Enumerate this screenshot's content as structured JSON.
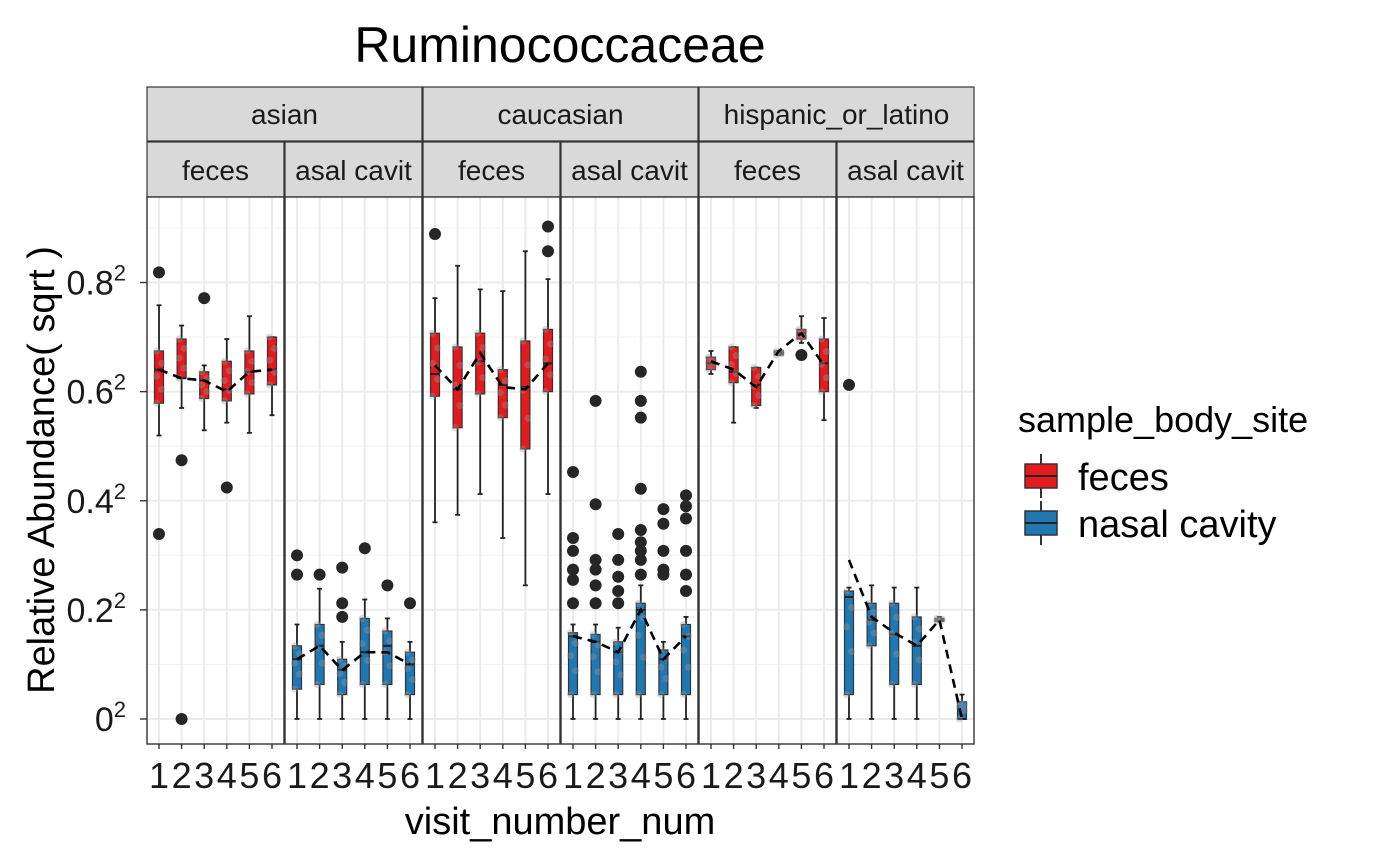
{
  "chart_data": {
    "type": "box",
    "title": "Ruminococcaceae",
    "xlabel": "visit_number_num",
    "ylabel": "Relative Abundance( sqrt )",
    "y_scale": "sqrt",
    "y_ticks": [
      {
        "value": 0,
        "base": "0",
        "exp": "2"
      },
      {
        "value": 0.2,
        "base": "0.2",
        "exp": "2"
      },
      {
        "value": 0.4,
        "base": "0.4",
        "exp": "2"
      },
      {
        "value": 0.6,
        "base": "0.6",
        "exp": "2"
      },
      {
        "value": 0.8,
        "base": "0.8",
        "exp": "2"
      }
    ],
    "x_tick_labels": [
      "1",
      "2",
      "3",
      "4",
      "5",
      "6"
    ],
    "legend": {
      "title": "sample_body_site",
      "position": "right",
      "items": [
        {
          "label": "feces",
          "color": "#E41A1C"
        },
        {
          "label": "nasal cavity",
          "color": "#1F78B4"
        }
      ]
    },
    "facet_rows": [
      {
        "label": "asian",
        "span": 2
      },
      {
        "label": "caucasian",
        "span": 2
      },
      {
        "label": "hispanic_or_latino",
        "span": 2
      }
    ],
    "panels": [
      {
        "ethnicity": "asian",
        "strip": "feces",
        "site": "feces",
        "boxes": [
          {
            "visit": 1,
            "min": 0.27,
            "q1": 0.335,
            "median": 0.41,
            "q3": 0.455,
            "max": 0.575,
            "outliers": [
              0.67,
              0.115
            ]
          },
          {
            "visit": 2,
            "min": 0.325,
            "q1": 0.39,
            "median": 0.39,
            "q3": 0.485,
            "max": 0.52,
            "outliers": [
              0.225,
              0.0
            ]
          },
          {
            "visit": 3,
            "min": 0.28,
            "q1": 0.345,
            "median": 0.385,
            "q3": 0.405,
            "max": 0.42,
            "outliers": [
              0.595
            ]
          },
          {
            "visit": 4,
            "min": 0.295,
            "q1": 0.34,
            "median": 0.365,
            "q3": 0.43,
            "max": 0.485,
            "outliers": [
              0.18
            ]
          },
          {
            "visit": 5,
            "min": 0.275,
            "q1": 0.355,
            "median": 0.405,
            "q3": 0.455,
            "max": 0.545,
            "outliers": []
          },
          {
            "visit": 6,
            "min": 0.31,
            "q1": 0.375,
            "median": 0.41,
            "q3": 0.49,
            "max": 0.49,
            "outliers": []
          }
        ]
      },
      {
        "ethnicity": "asian",
        "strip": "asal cavit",
        "site": "nasal cavity",
        "boxes": [
          {
            "visit": 1,
            "min": 0.0,
            "q1": 0.003,
            "median": 0.012,
            "q3": 0.018,
            "max": 0.03,
            "outliers": [
              0.09,
              0.07
            ]
          },
          {
            "visit": 2,
            "min": 0.0,
            "q1": 0.004,
            "median": 0.018,
            "q3": 0.03,
            "max": 0.057,
            "outliers": [
              0.07
            ]
          },
          {
            "visit": 3,
            "min": 0.0,
            "q1": 0.002,
            "median": 0.008,
            "q3": 0.012,
            "max": 0.02,
            "outliers": [
              0.077,
              0.045,
              0.035
            ]
          },
          {
            "visit": 4,
            "min": 0.0,
            "q1": 0.004,
            "median": 0.015,
            "q3": 0.034,
            "max": 0.048,
            "outliers": [
              0.098
            ]
          },
          {
            "visit": 5,
            "min": 0.0,
            "q1": 0.004,
            "median": 0.018,
            "q3": 0.026,
            "max": 0.034,
            "outliers": [
              0.06
            ]
          },
          {
            "visit": 6,
            "min": 0.0,
            "q1": 0.002,
            "median": 0.01,
            "q3": 0.015,
            "max": 0.02,
            "outliers": [
              0.045
            ]
          }
        ]
      },
      {
        "ethnicity": "caucasian",
        "strip": "feces",
        "site": "feces",
        "boxes": [
          {
            "visit": 1,
            "min": 0.13,
            "q1": 0.35,
            "median": 0.4,
            "q3": 0.5,
            "max": 0.595,
            "outliers": [
              0.79
            ]
          },
          {
            "visit": 2,
            "min": 0.14,
            "q1": 0.285,
            "median": 0.365,
            "q3": 0.465,
            "max": 0.69,
            "outliers": []
          },
          {
            "visit": 3,
            "min": 0.17,
            "q1": 0.355,
            "median": 0.43,
            "q3": 0.5,
            "max": 0.62,
            "outliers": []
          },
          {
            "visit": 4,
            "min": 0.11,
            "q1": 0.305,
            "median": 0.375,
            "q3": 0.41,
            "max": 0.615,
            "outliers": []
          },
          {
            "visit": 5,
            "min": 0.06,
            "q1": 0.245,
            "median": 0.37,
            "q3": 0.48,
            "max": 0.735,
            "outliers": []
          },
          {
            "visit": 6,
            "min": 0.17,
            "q1": 0.36,
            "median": 0.425,
            "q3": 0.51,
            "max": 0.65,
            "outliers": [
              0.815,
              0.735
            ]
          }
        ]
      },
      {
        "ethnicity": "caucasian",
        "strip": "asal cavit",
        "site": "nasal cavity",
        "boxes": [
          {
            "visit": 1,
            "min": 0.0,
            "q1": 0.002,
            "median": 0.023,
            "q3": 0.025,
            "max": 0.03,
            "outliers": [
              0.205,
              0.11,
              0.095,
              0.075,
              0.065,
              0.045
            ]
          },
          {
            "visit": 2,
            "min": 0.0,
            "q1": 0.002,
            "median": 0.02,
            "q3": 0.024,
            "max": 0.03,
            "outliers": [
              0.34,
              0.155,
              0.085,
              0.075,
              0.06,
              0.045
            ]
          },
          {
            "visit": 3,
            "min": 0.0,
            "q1": 0.002,
            "median": 0.015,
            "q3": 0.02,
            "max": 0.028,
            "outliers": [
              0.115,
              0.085,
              0.068,
              0.055,
              0.045
            ]
          },
          {
            "visit": 4,
            "min": 0.0,
            "q1": 0.002,
            "median": 0.04,
            "q3": 0.045,
            "max": 0.06,
            "outliers": [
              0.405,
              0.34,
              0.305,
              0.178,
              0.12,
              0.105,
              0.095,
              0.085,
              0.07
            ]
          },
          {
            "visit": 5,
            "min": 0.0,
            "q1": 0.002,
            "median": 0.012,
            "q3": 0.016,
            "max": 0.02,
            "outliers": [
              0.148,
              0.128,
              0.095,
              0.075,
              0.07
            ]
          },
          {
            "visit": 6,
            "min": 0.0,
            "q1": 0.002,
            "median": 0.023,
            "q3": 0.03,
            "max": 0.035,
            "outliers": [
              0.168,
              0.152,
              0.135,
              0.095,
              0.07,
              0.055
            ]
          }
        ]
      },
      {
        "ethnicity": "hispanic_or_latino",
        "strip": "feces",
        "site": "feces",
        "boxes": [
          {
            "visit": 1,
            "min": 0.4,
            "q1": 0.41,
            "median": 0.425,
            "q3": 0.44,
            "max": 0.455,
            "outliers": []
          },
          {
            "visit": 2,
            "min": 0.295,
            "q1": 0.38,
            "median": 0.405,
            "q3": 0.465,
            "max": 0.465,
            "outliers": []
          },
          {
            "visit": 3,
            "min": 0.325,
            "q1": 0.33,
            "median": 0.375,
            "q3": 0.415,
            "max": 0.415,
            "outliers": []
          },
          {
            "visit": 4,
            "min": 0.445,
            "q1": 0.445,
            "median": 0.45,
            "q3": 0.455,
            "max": 0.455,
            "outliers": []
          },
          {
            "visit": 5,
            "min": 0.475,
            "q1": 0.485,
            "median": 0.5,
            "q3": 0.51,
            "max": 0.545,
            "outliers": [
              0.445
            ]
          },
          {
            "visit": 6,
            "min": 0.3,
            "q1": 0.36,
            "median": 0.425,
            "q3": 0.485,
            "max": 0.54,
            "outliers": []
          }
        ]
      },
      {
        "ethnicity": "hispanic_or_latino",
        "strip": "asal cavit",
        "site": "nasal cavity",
        "boxes": [
          {
            "visit": 1,
            "min": 0.0,
            "q1": 0.002,
            "median": 0.05,
            "q3": 0.055,
            "max": 0.058,
            "outliers": [
              0.375
            ]
          },
          {
            "visit": 2,
            "min": 0.0,
            "q1": 0.018,
            "median": 0.033,
            "q3": 0.045,
            "max": 0.06,
            "outliers": []
          },
          {
            "visit": 3,
            "min": 0.0,
            "q1": 0.004,
            "median": 0.024,
            "q3": 0.045,
            "max": 0.058,
            "outliers": []
          },
          {
            "visit": 4,
            "min": 0.0,
            "q1": 0.004,
            "median": 0.018,
            "q3": 0.035,
            "max": 0.058,
            "outliers": []
          },
          {
            "visit": 5,
            "min": 0.032,
            "q1": 0.032,
            "median": 0.033,
            "q3": 0.034,
            "max": 0.035,
            "outliers": []
          },
          {
            "visit": 6,
            "min": 0.0,
            "q1": 0.0,
            "median": 0.0,
            "q3": 0.001,
            "max": 0.002,
            "outliers": []
          }
        ]
      }
    ],
    "mean_lines": [
      [
        0.41,
        0.39,
        0.385,
        0.36,
        0.405,
        0.41
      ],
      [
        0.012,
        0.018,
        0.008,
        0.015,
        0.015,
        0.01
      ],
      [
        0.42,
        0.365,
        0.45,
        0.37,
        0.365,
        0.425
      ],
      [
        0.023,
        0.02,
        0.015,
        0.04,
        0.012,
        0.023
      ],
      [
        0.43,
        0.41,
        0.37,
        0.455,
        0.5,
        0.42
      ],
      [
        0.085,
        0.035,
        0.025,
        0.018,
        0.033,
        0.0
      ]
    ],
    "grid": true
  }
}
